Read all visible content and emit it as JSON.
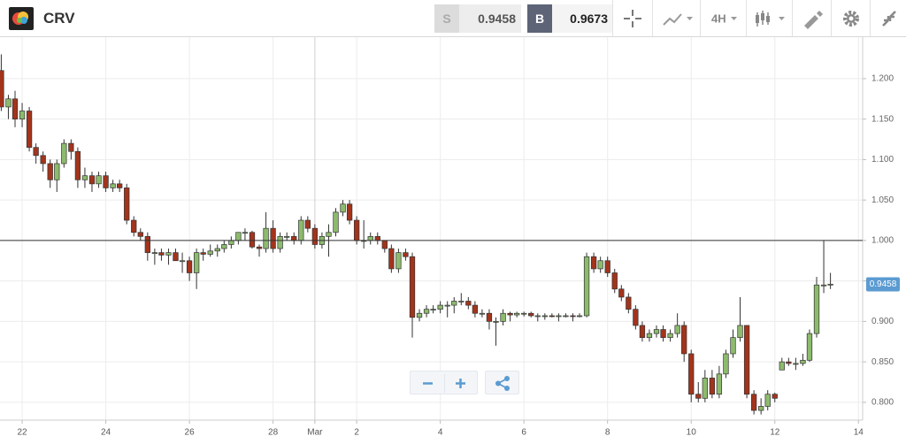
{
  "header": {
    "symbol": "CRV",
    "sell_label": "S",
    "sell": "0.9458",
    "buy_label": "B",
    "buy": "0.9673",
    "interval": "4H"
  },
  "chart_data": {
    "type": "candlestick",
    "x": [
      21.5,
      21.67,
      21.83,
      22,
      22.17,
      22.33,
      22.5,
      22.67,
      22.83,
      23,
      23.17,
      23.33,
      23.5,
      23.67,
      23.83,
      24,
      24.17,
      24.33,
      24.5,
      24.67,
      24.83,
      25,
      25.17,
      25.33,
      25.5,
      25.67,
      25.83,
      26,
      26.17,
      26.33,
      26.5,
      26.67,
      26.83,
      27,
      27.17,
      27.33,
      27.5,
      27.67,
      27.83,
      28,
      28.17,
      28.33,
      28.5,
      28.67,
      28.83,
      29,
      29.17,
      29.33,
      29.5,
      29.67,
      29.83,
      30,
      30.17,
      30.33,
      30.5,
      30.67,
      30.83,
      31,
      31.17,
      31.33,
      31.5,
      31.67,
      31.83,
      32,
      32.17,
      32.33,
      32.5,
      32.67,
      32.83,
      33,
      33.17,
      33.33,
      33.5,
      33.67,
      33.83,
      34,
      34.17,
      34.33,
      34.5,
      34.67,
      34.83,
      35,
      35.17,
      35.33,
      35.5,
      35.67,
      35.83,
      36,
      36.17,
      36.33,
      36.5,
      36.67,
      36.83,
      37,
      37.17,
      37.33,
      37.5,
      37.67,
      37.83,
      38,
      38.17,
      38.33,
      38.5,
      38.67,
      38.83,
      39,
      39.17,
      39.33,
      39.5,
      39.67,
      39.83,
      40,
      40.17,
      40.33,
      40.5,
      40.67,
      40.83,
      41,
      41.17,
      41.33
    ],
    "open": [
      1.21,
      1.165,
      1.175,
      1.15,
      1.16,
      1.115,
      1.105,
      1.095,
      1.075,
      1.095,
      1.12,
      1.11,
      1.075,
      1.08,
      1.07,
      1.08,
      1.065,
      1.07,
      1.065,
      1.025,
      1.01,
      1.005,
      0.985,
      0.985,
      0.982,
      0.985,
      0.975,
      0.975,
      0.96,
      0.985,
      0.983,
      0.987,
      0.99,
      0.995,
      1.0,
      1.01,
      1.01,
      0.992,
      0.99,
      1.015,
      0.99,
      1.005,
      1.005,
      1.0,
      1.025,
      1.015,
      0.995,
      1.005,
      1.01,
      1.035,
      1.045,
      1.025,
      1.0,
      1.0,
      1.005,
      1.0,
      0.99,
      0.965,
      0.985,
      0.98,
      0.905,
      0.91,
      0.915,
      0.915,
      0.92,
      0.92,
      0.925,
      0.925,
      0.92,
      0.91,
      0.91,
      0.9,
      0.9,
      0.91,
      0.908,
      0.91,
      0.91,
      0.907,
      0.907,
      0.907,
      0.906,
      0.907,
      0.907,
      0.906,
      0.907,
      0.98,
      0.965,
      0.975,
      0.96,
      0.94,
      0.93,
      0.915,
      0.895,
      0.88,
      0.885,
      0.89,
      0.88,
      0.885,
      0.895,
      0.86,
      0.81,
      0.805,
      0.83,
      0.81,
      0.835,
      0.86,
      0.88,
      0.895,
      0.81,
      0.79,
      0.795,
      0.81,
      0.84,
      0.85,
      0.848,
      0.848,
      0.852,
      0.885,
      0.945,
      0.945
    ],
    "high": [
      1.23,
      1.18,
      1.185,
      1.17,
      1.165,
      1.12,
      1.11,
      1.1,
      1.1,
      1.125,
      1.125,
      1.115,
      1.09,
      1.085,
      1.085,
      1.085,
      1.075,
      1.075,
      1.07,
      1.03,
      1.015,
      1.01,
      0.99,
      0.99,
      0.99,
      0.99,
      0.985,
      0.98,
      0.99,
      0.99,
      0.995,
      0.995,
      1.0,
      1.005,
      1.01,
      1.015,
      1.012,
      0.995,
      1.035,
      1.025,
      1.01,
      1.01,
      1.01,
      1.03,
      1.03,
      1.02,
      1.01,
      1.02,
      1.04,
      1.05,
      1.05,
      1.03,
      1.025,
      1.01,
      1.01,
      1.0,
      0.995,
      0.99,
      0.99,
      0.985,
      0.915,
      0.92,
      0.92,
      0.925,
      0.925,
      0.93,
      0.935,
      0.93,
      0.925,
      0.915,
      0.915,
      0.905,
      0.915,
      0.912,
      0.912,
      0.912,
      0.912,
      0.91,
      0.91,
      0.91,
      0.91,
      0.91,
      0.91,
      0.91,
      0.985,
      0.985,
      0.98,
      0.98,
      0.965,
      0.945,
      0.935,
      0.92,
      0.9,
      0.89,
      0.895,
      0.895,
      0.89,
      0.91,
      0.9,
      0.865,
      0.825,
      0.84,
      0.84,
      0.845,
      0.865,
      0.89,
      0.93,
      0.895,
      0.815,
      0.805,
      0.815,
      0.812,
      0.855,
      0.855,
      0.855,
      0.86,
      0.89,
      0.955,
      1.0,
      0.96
    ],
    "low": [
      1.16,
      1.15,
      1.14,
      1.14,
      1.11,
      1.095,
      1.085,
      1.065,
      1.06,
      1.09,
      1.1,
      1.065,
      1.065,
      1.06,
      1.065,
      1.06,
      1.06,
      1.06,
      1.02,
      1.005,
      1.0,
      0.975,
      0.97,
      0.975,
      0.97,
      0.975,
      0.96,
      0.95,
      0.94,
      0.975,
      0.98,
      0.98,
      0.985,
      0.99,
      0.995,
      1.0,
      0.99,
      0.98,
      0.985,
      0.985,
      0.985,
      1.0,
      0.995,
      0.995,
      1.01,
      0.99,
      0.99,
      0.98,
      1.005,
      1.03,
      1.02,
      0.995,
      0.99,
      0.995,
      0.995,
      0.985,
      0.96,
      0.96,
      0.975,
      0.88,
      0.9,
      0.905,
      0.91,
      0.91,
      0.905,
      0.91,
      0.92,
      0.915,
      0.905,
      0.905,
      0.89,
      0.87,
      0.895,
      0.9,
      0.905,
      0.906,
      0.905,
      0.9,
      0.902,
      0.905,
      0.9,
      0.905,
      0.9,
      0.905,
      0.905,
      0.96,
      0.96,
      0.955,
      0.935,
      0.925,
      0.91,
      0.89,
      0.875,
      0.875,
      0.88,
      0.875,
      0.875,
      0.88,
      0.85,
      0.8,
      0.8,
      0.8,
      0.805,
      0.805,
      0.83,
      0.855,
      0.875,
      0.805,
      0.785,
      0.785,
      0.79,
      0.8,
      0.84,
      0.845,
      0.84,
      0.845,
      0.85,
      0.88,
      0.935,
      0.94
    ],
    "close": [
      1.165,
      1.175,
      1.15,
      1.16,
      1.115,
      1.105,
      1.095,
      1.075,
      1.095,
      1.12,
      1.11,
      1.075,
      1.08,
      1.07,
      1.08,
      1.065,
      1.07,
      1.065,
      1.025,
      1.01,
      1.005,
      0.985,
      0.985,
      0.982,
      0.985,
      0.975,
      0.975,
      0.96,
      0.985,
      0.983,
      0.987,
      0.99,
      0.995,
      1.0,
      1.01,
      1.01,
      0.992,
      0.99,
      1.015,
      0.99,
      1.005,
      1.005,
      1.0,
      1.025,
      1.015,
      0.995,
      1.005,
      1.01,
      1.035,
      1.045,
      1.025,
      1.0,
      1.0,
      1.005,
      1.0,
      0.99,
      0.965,
      0.985,
      0.98,
      0.905,
      0.91,
      0.915,
      0.915,
      0.92,
      0.92,
      0.925,
      0.925,
      0.92,
      0.91,
      0.91,
      0.9,
      0.9,
      0.91,
      0.908,
      0.91,
      0.91,
      0.907,
      0.907,
      0.907,
      0.906,
      0.907,
      0.907,
      0.906,
      0.907,
      0.98,
      0.965,
      0.975,
      0.96,
      0.94,
      0.93,
      0.915,
      0.895,
      0.88,
      0.885,
      0.89,
      0.88,
      0.885,
      0.895,
      0.86,
      0.81,
      0.805,
      0.83,
      0.81,
      0.835,
      0.86,
      0.88,
      0.895,
      0.81,
      0.79,
      0.795,
      0.81,
      0.805,
      0.85,
      0.848,
      0.848,
      0.852,
      0.885,
      0.945,
      0.945,
      0.946
    ],
    "up_color": "#8dbb6d",
    "down_color": "#a3341c",
    "xlim": [
      21.47,
      42.1
    ],
    "xticks": [
      22,
      24,
      26,
      28,
      {
        "value": 29,
        "label": "Mar"
      },
      {
        "value": 30,
        "label": "2"
      },
      {
        "value": 32,
        "label": "4"
      },
      {
        "value": 34,
        "label": "6"
      },
      {
        "value": 36,
        "label": "8"
      },
      {
        "value": 38,
        "label": "10"
      },
      {
        "value": 40,
        "label": "12"
      },
      {
        "value": 42,
        "label": "14"
      }
    ],
    "ylim": [
      0.778,
      1.248
    ],
    "yticks": [
      {
        "value": 0.8,
        "label": "0.800"
      },
      {
        "value": 0.85,
        "label": "0.850"
      },
      {
        "value": 0.9,
        "label": "0.900"
      },
      {
        "value": 0.95,
        "label": "0.950"
      },
      {
        "value": 1.0,
        "label": "1.000"
      },
      {
        "value": 1.05,
        "label": "1.050"
      },
      {
        "value": 1.1,
        "label": "1.100"
      },
      {
        "value": 1.15,
        "label": "1.150"
      },
      {
        "value": 1.2,
        "label": "1.200"
      }
    ],
    "reference_line": 1.0,
    "price_label": 0.9458,
    "grid": true
  }
}
